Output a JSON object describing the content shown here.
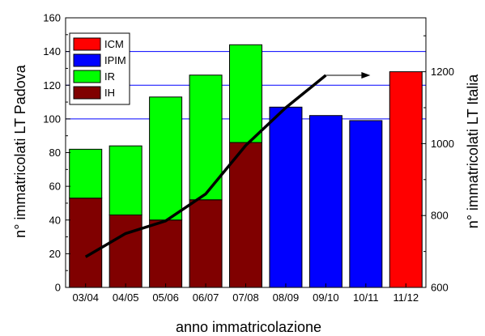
{
  "chart_data": {
    "type": "bar",
    "categories": [
      "03/04",
      "04/05",
      "05/06",
      "06/07",
      "07/08",
      "08/09",
      "09/10",
      "10/11",
      "11/12"
    ],
    "stack_series": [
      {
        "name": "IH",
        "color": "#800000",
        "values": [
          53,
          43,
          40,
          52,
          86,
          0,
          0,
          0,
          0
        ]
      },
      {
        "name": "IR",
        "color": "#00ff00",
        "values": [
          29,
          41,
          73,
          74,
          58,
          0,
          0,
          0,
          0
        ]
      },
      {
        "name": "IPIM",
        "color": "#0000ff",
        "values": [
          0,
          0,
          0,
          0,
          0,
          107,
          102,
          99,
          0
        ]
      },
      {
        "name": "ICM",
        "color": "#ff0000",
        "values": [
          0,
          0,
          0,
          0,
          0,
          0,
          0,
          0,
          128
        ]
      }
    ],
    "legend_order": [
      "ICM",
      "IPIM",
      "IR",
      "IH"
    ],
    "line_series": {
      "axis": "right",
      "color": "#000000",
      "values": [
        685,
        750,
        785,
        860,
        995,
        1100,
        1190
      ]
    },
    "xlabel": "anno immatricolazione",
    "ylabel": "n° immatricolati LT Padova",
    "y2label": "n° immatricolati LT Italia",
    "ylim": [
      0,
      160
    ],
    "y2lim": [
      600,
      1350
    ],
    "yticks": [
      "0",
      "20",
      "40",
      "60",
      "80",
      "100",
      "120",
      "140",
      "160"
    ],
    "y2ticks": [
      "600",
      "800",
      "1000",
      "1200"
    ],
    "grid": "horizontal lines at 100, 120, 140 (left axis)",
    "grid_color": "#0000ff",
    "legend_position": "top-left",
    "annotation": "arrow pointing right toward right axis"
  }
}
